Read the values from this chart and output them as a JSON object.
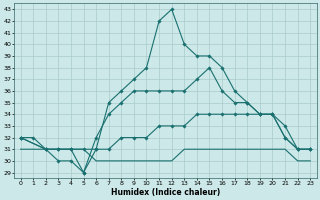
{
  "xlabel": "Humidex (Indice chaleur)",
  "bg_color": "#cce8e8",
  "line_color": "#1a7070",
  "grid_color": "#aacccc",
  "xlim": [
    -0.5,
    23.5
  ],
  "ylim": [
    28.5,
    43.5
  ],
  "yticks": [
    29,
    30,
    31,
    32,
    33,
    34,
    35,
    36,
    37,
    38,
    39,
    40,
    41,
    42,
    43
  ],
  "xticks": [
    0,
    1,
    2,
    3,
    4,
    5,
    6,
    7,
    8,
    9,
    10,
    11,
    12,
    13,
    14,
    15,
    16,
    17,
    18,
    19,
    20,
    21,
    22,
    23
  ],
  "lines": [
    {
      "x": [
        0,
        1,
        2,
        3,
        4,
        5,
        6,
        7,
        8,
        9,
        10,
        11,
        12,
        13,
        14,
        15,
        16,
        17,
        18,
        19,
        20,
        21,
        22,
        23
      ],
      "y": [
        31,
        31,
        31,
        31,
        31,
        31,
        30,
        30,
        30,
        30,
        30,
        30,
        30,
        31,
        31,
        31,
        31,
        31,
        31,
        31,
        31,
        31,
        30,
        30
      ],
      "marker": false
    },
    {
      "x": [
        0,
        1,
        2,
        3,
        4,
        5,
        6,
        7,
        8,
        9,
        10,
        11,
        12,
        13,
        14,
        15,
        16,
        17,
        18,
        19,
        20,
        21,
        22,
        23
      ],
      "y": [
        32,
        32,
        31,
        31,
        31,
        31,
        31,
        31,
        32,
        32,
        32,
        33,
        33,
        33,
        34,
        34,
        34,
        34,
        34,
        34,
        34,
        33,
        31,
        31
      ],
      "marker": true
    },
    {
      "x": [
        0,
        2,
        3,
        4,
        5,
        6,
        7,
        8,
        9,
        10,
        11,
        12,
        13,
        14,
        15,
        16,
        17,
        18,
        19,
        20,
        21,
        22,
        23
      ],
      "y": [
        32,
        31,
        31,
        31,
        29,
        32,
        34,
        35,
        36,
        36,
        36,
        36,
        36,
        37,
        38,
        36,
        35,
        35,
        34,
        34,
        32,
        31,
        31
      ],
      "marker": true
    },
    {
      "x": [
        0,
        2,
        3,
        4,
        5,
        6,
        7,
        8,
        9,
        10,
        11,
        12,
        13,
        14,
        15,
        16,
        17,
        18,
        19,
        20,
        21,
        22,
        23
      ],
      "y": [
        32,
        31,
        30,
        30,
        29,
        31,
        35,
        36,
        37,
        38,
        42,
        43,
        40,
        39,
        39,
        38,
        36,
        35,
        34,
        34,
        32,
        31,
        31
      ],
      "marker": true
    }
  ]
}
